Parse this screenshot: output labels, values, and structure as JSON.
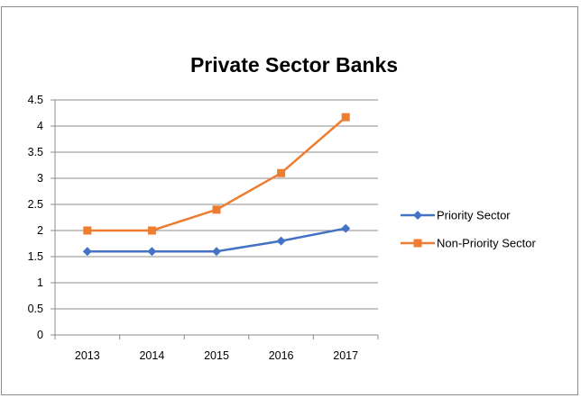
{
  "chart_data": {
    "type": "line",
    "title": "Private Sector Banks",
    "categories": [
      "2013",
      "2014",
      "2015",
      "2016",
      "2017"
    ],
    "series": [
      {
        "name": "Priority Sector",
        "values": [
          1.6,
          1.6,
          1.6,
          1.8,
          2.04
        ],
        "color": "#4472C4",
        "marker": "diamond"
      },
      {
        "name": "Non-Priority  Sector",
        "values": [
          2.0,
          2.0,
          2.4,
          3.1,
          4.17
        ],
        "color": "#ED7D31",
        "marker": "square"
      }
    ],
    "yticks": [
      "0",
      "0.5",
      "1",
      "1.5",
      "2",
      "2.5",
      "3",
      "3.5",
      "4",
      "4.5"
    ],
    "ylim": [
      0,
      4.5
    ],
    "grid": true,
    "legend_position": "right"
  }
}
